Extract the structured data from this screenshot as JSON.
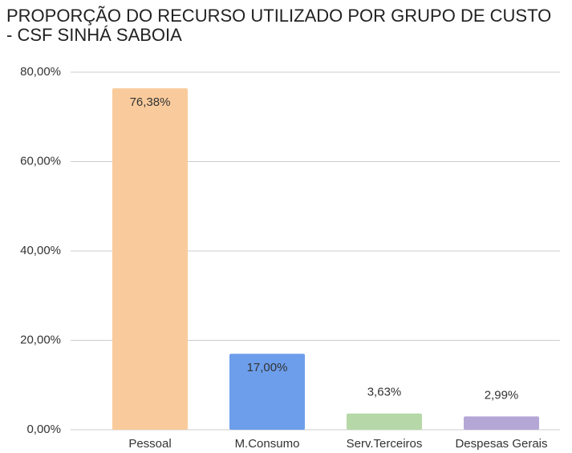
{
  "chart_data": {
    "type": "bar",
    "title": "PROPORÇÃO DO RECURSO UTILIZADO POR GRUPO DE CUSTO - CSF SINHÁ SABOIA",
    "categories": [
      "Pessoal",
      "M.Consumo",
      "Serv.Terceiros",
      "Despesas Gerais"
    ],
    "values": [
      76.38,
      17.0,
      3.63,
      2.99
    ],
    "value_labels": [
      "76,38%",
      "17,00%",
      "3,63%",
      "2,99%"
    ],
    "colors": [
      "#f9cb9c",
      "#6d9eeb",
      "#b6d7a8",
      "#b4a7d6"
    ],
    "ylim": [
      0,
      80
    ],
    "yticks": [
      {
        "value": 0,
        "label": "0,00%"
      },
      {
        "value": 20,
        "label": "20,00%"
      },
      {
        "value": 40,
        "label": "40,00%"
      },
      {
        "value": 60,
        "label": "60,00%"
      },
      {
        "value": 80,
        "label": "80,00%"
      }
    ],
    "grid": true
  }
}
